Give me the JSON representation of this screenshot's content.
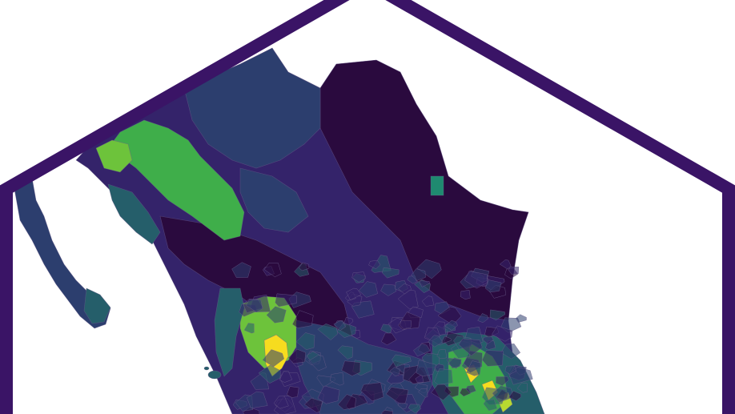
{
  "map": {
    "palette": {
      "v0": "#2a0a3e",
      "v1": "#34236a",
      "v2": "#2c3e6e",
      "v3": "#255e6a",
      "v4": "#1f8a70",
      "v5": "#3fae4a",
      "v6": "#6dc33b",
      "v7": "#b8d930",
      "v8": "#f6dc1f"
    },
    "frame_color": "#3a1466",
    "background": "#ffffff",
    "boundary_color": "#6a5c8a"
  }
}
